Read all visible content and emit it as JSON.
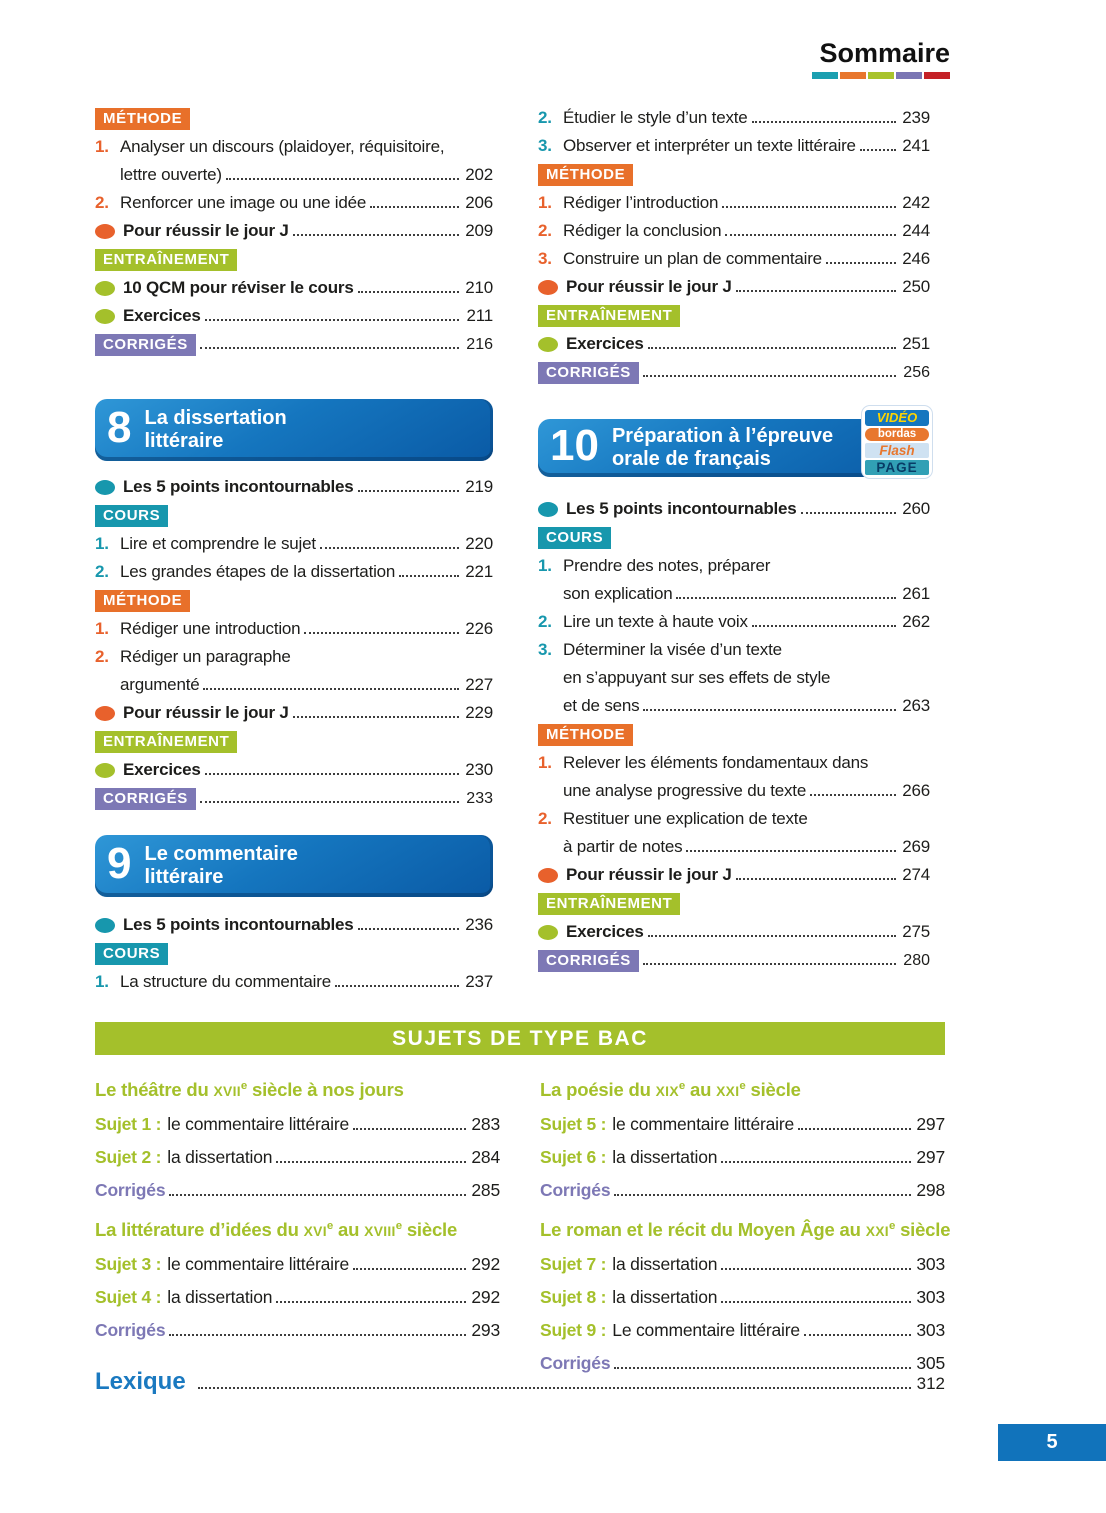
{
  "header": {
    "title": "Sommaire",
    "stripes": [
      "#1b9fb0",
      "#e8772e",
      "#a8c32c",
      "#7b76b4",
      "#c42127"
    ]
  },
  "colors": {
    "methode": "#e8702a",
    "entrainement": "#a4c02b",
    "corriges": "#7d78b5",
    "cours": "#1797ad",
    "num_orange": "#e8612c",
    "orange": "#e8612c",
    "green": "#a4c02b",
    "teal": "#1797ad",
    "banner_blue_top": "#2f97d7",
    "banner_blue_bottom": "#0a5aa5",
    "sujet_green": "#a4c02b",
    "corriges_text": "#7d78b5",
    "lexique_blue": "#1a79c0",
    "pagebox_blue": "#1173bb"
  },
  "toc": {
    "left": [
      {
        "type": "badge",
        "style": "methode",
        "label": "MÉTHODE"
      },
      {
        "type": "item",
        "num": "1.",
        "color": "orange",
        "lines": [
          {
            "text": "Analyser un discours  (plaidoyer, réquisitoire,"
          },
          {
            "text": "lettre ouverte)",
            "page": "202"
          }
        ]
      },
      {
        "type": "item",
        "num": "2.",
        "color": "orange",
        "lines": [
          {
            "text": "Renforcer une image ou une idée",
            "page": "206"
          }
        ]
      },
      {
        "type": "bullet",
        "dot": "orange",
        "text": "Pour réussir le jour J",
        "page": "209"
      },
      {
        "type": "badge",
        "style": "entrainement",
        "label": "ENTRAÎNEMENT"
      },
      {
        "type": "bullet",
        "dot": "green",
        "text": "10 QCM pour réviser le cours",
        "page": "210"
      },
      {
        "type": "bullet",
        "dot": "green",
        "text": "Exercices",
        "page": "211"
      },
      {
        "type": "badge",
        "style": "corriges",
        "label": "CORRIGÉS",
        "page": "216"
      },
      {
        "type": "chapter",
        "num": "8",
        "lines": [
          "La dissertation",
          "littéraire"
        ]
      },
      {
        "type": "bullet",
        "dot": "teal",
        "text": "Les 5 points incontournables",
        "page": "219"
      },
      {
        "type": "badge",
        "style": "cours",
        "label": "COURS"
      },
      {
        "type": "item",
        "num": "1.",
        "color": "teal",
        "lines": [
          {
            "text": "Lire et comprendre le sujet",
            "page": "220"
          }
        ]
      },
      {
        "type": "item",
        "num": "2.",
        "color": "teal",
        "lines": [
          {
            "text": "Les grandes étapes de la dissertation",
            "page": "221"
          }
        ]
      },
      {
        "type": "badge",
        "style": "methode",
        "label": "MÉTHODE"
      },
      {
        "type": "item",
        "num": "1.",
        "color": "orange",
        "lines": [
          {
            "text": "Rédiger une introduction",
            "page": "226"
          }
        ]
      },
      {
        "type": "item",
        "num": "2.",
        "color": "orange",
        "lines": [
          {
            "text": "Rédiger un paragraphe"
          },
          {
            "text": "argumenté",
            "page": "227"
          }
        ]
      },
      {
        "type": "bullet",
        "dot": "orange",
        "text": "Pour réussir le jour J",
        "page": "229"
      },
      {
        "type": "badge",
        "style": "entrainement",
        "label": "ENTRAÎNEMENT"
      },
      {
        "type": "bullet",
        "dot": "green",
        "text": "Exercices",
        "page": "230"
      },
      {
        "type": "badge",
        "style": "corriges",
        "label": "CORRIGÉS",
        "page": "233"
      },
      {
        "type": "chapter",
        "num": "9",
        "lines": [
          "Le commentaire",
          "littéraire"
        ]
      },
      {
        "type": "bullet",
        "dot": "teal",
        "text": "Les 5 points incontournables",
        "page": "236"
      },
      {
        "type": "badge",
        "style": "cours",
        "label": "COURS"
      },
      {
        "type": "item",
        "num": "1.",
        "color": "teal",
        "lines": [
          {
            "text": "La structure du commentaire",
            "page": "237"
          }
        ]
      }
    ],
    "right": [
      {
        "type": "item",
        "num": "2.",
        "color": "teal",
        "lines": [
          {
            "text": "Étudier le style d’un texte",
            "page": "239"
          }
        ]
      },
      {
        "type": "item",
        "num": "3.",
        "color": "teal",
        "lines": [
          {
            "text": "Observer et interpréter un texte littéraire",
            "page": "241"
          }
        ]
      },
      {
        "type": "badge",
        "style": "methode",
        "label": "MÉTHODE"
      },
      {
        "type": "item",
        "num": "1.",
        "color": "orange",
        "lines": [
          {
            "text": "Rédiger l’introduction",
            "page": "242"
          }
        ]
      },
      {
        "type": "item",
        "num": "2.",
        "color": "orange",
        "lines": [
          {
            "text": "Rédiger la conclusion",
            "page": "244"
          }
        ]
      },
      {
        "type": "item",
        "num": "3.",
        "color": "orange",
        "lines": [
          {
            "text": "Construire un plan de commentaire",
            "page": "246"
          }
        ]
      },
      {
        "type": "bullet",
        "dot": "orange",
        "text": "Pour réussir le jour J",
        "page": "250"
      },
      {
        "type": "badge",
        "style": "entrainement",
        "label": "ENTRAÎNEMENT"
      },
      {
        "type": "bullet",
        "dot": "green",
        "text": "Exercices",
        "page": "251"
      },
      {
        "type": "badge",
        "style": "corriges",
        "label": "CORRIGÉS",
        "page": "256"
      },
      {
        "type": "chapter",
        "num": "10",
        "lines": [
          "Préparation à l’épreuve",
          "orale de français"
        ],
        "video": {
          "l1": "VIDÉO",
          "l2": "bordas",
          "l3": "Flash",
          "l4": "PAGE"
        }
      },
      {
        "type": "bullet",
        "dot": "teal",
        "text": "Les 5 points incontournables",
        "page": "260"
      },
      {
        "type": "badge",
        "style": "cours",
        "label": "COURS"
      },
      {
        "type": "item",
        "num": "1.",
        "color": "teal",
        "lines": [
          {
            "text": "Prendre des notes, préparer"
          },
          {
            "text": "son explication",
            "page": "261"
          }
        ]
      },
      {
        "type": "item",
        "num": "2.",
        "color": "teal",
        "lines": [
          {
            "text": "Lire un texte à haute voix",
            "page": "262"
          }
        ]
      },
      {
        "type": "item",
        "num": "3.",
        "color": "teal",
        "lines": [
          {
            "text": "Déterminer la visée d’un texte"
          },
          {
            "text": "en s’appuyant sur ses effets de style"
          },
          {
            "text": "et de sens",
            "page": "263"
          }
        ]
      },
      {
        "type": "badge",
        "style": "methode",
        "label": "MÉTHODE"
      },
      {
        "type": "item",
        "num": "1.",
        "color": "orange",
        "lines": [
          {
            "text": "Relever les éléments fondamentaux dans"
          },
          {
            "text": "une analyse progressive du texte",
            "page": "266"
          }
        ]
      },
      {
        "type": "item",
        "num": "2.",
        "color": "orange",
        "lines": [
          {
            "text": "Restituer une explication de texte"
          },
          {
            "text": "à partir de notes",
            "page": "269"
          }
        ]
      },
      {
        "type": "bullet",
        "dot": "orange",
        "text": "Pour réussir le jour J",
        "page": "274"
      },
      {
        "type": "badge",
        "style": "entrainement",
        "label": "ENTRAÎNEMENT"
      },
      {
        "type": "bullet",
        "dot": "green",
        "text": "Exercices",
        "page": "275"
      },
      {
        "type": "badge",
        "style": "corriges",
        "label": "CORRIGÉS",
        "page": "280"
      }
    ]
  },
  "sujets": {
    "banner": "SUJETS DE TYPE BAC",
    "left": {
      "groups": [
        {
          "heading": [
            {
              "t": "Le théâtre du "
            },
            {
              "t": "xvii",
              "sc": true
            },
            {
              "t": "e",
              "sup": true
            },
            {
              "t": " siècle à nos jours"
            }
          ],
          "entries": [
            {
              "label": "Sujet 1 :",
              "text": "le commentaire littéraire",
              "page": "283"
            },
            {
              "label": "Sujet 2 :",
              "text": "la dissertation",
              "page": "284"
            },
            {
              "label": "Corrigés",
              "text": "",
              "page": "285",
              "kind": "corriges"
            }
          ]
        },
        {
          "heading": [
            {
              "t": "La littérature d’idées du "
            },
            {
              "t": "xvi",
              "sc": true
            },
            {
              "t": "e",
              "sup": true
            },
            {
              "t": " au "
            },
            {
              "t": "xviii",
              "sc": true
            },
            {
              "t": "e",
              "sup": true
            },
            {
              "t": " siècle"
            }
          ],
          "entries": [
            {
              "label": "Sujet 3 :",
              "text": "le commentaire littéraire",
              "page": "292"
            },
            {
              "label": "Sujet 4 :",
              "text": "la dissertation",
              "page": "292"
            },
            {
              "label": "Corrigés",
              "text": "",
              "page": "293",
              "kind": "corriges"
            }
          ]
        }
      ]
    },
    "right": {
      "groups": [
        {
          "heading": [
            {
              "t": "La poésie du "
            },
            {
              "t": "xix",
              "sc": true
            },
            {
              "t": "e",
              "sup": true
            },
            {
              "t": " au "
            },
            {
              "t": "xxi",
              "sc": true
            },
            {
              "t": "e",
              "sup": true
            },
            {
              "t": " siècle"
            }
          ],
          "entries": [
            {
              "label": "Sujet 5 :",
              "text": "le commentaire littéraire",
              "page": "297"
            },
            {
              "label": "Sujet 6 :",
              "text": "la dissertation",
              "page": "297"
            },
            {
              "label": "Corrigés",
              "text": "",
              "page": "298",
              "kind": "corriges"
            }
          ]
        },
        {
          "heading": [
            {
              "t": "Le roman et le récit du Moyen Âge au "
            },
            {
              "t": "xxi",
              "sc": true
            },
            {
              "t": "e",
              "sup": true
            },
            {
              "t": " siècle"
            }
          ],
          "entries": [
            {
              "label": "Sujet 7 :",
              "text": "la dissertation",
              "page": "303"
            },
            {
              "label": "Sujet 8 :",
              "text": "la dissertation",
              "page": "303"
            },
            {
              "label": "Sujet 9 :",
              "text": "Le commentaire littéraire",
              "page": "303"
            },
            {
              "label": "Corrigés",
              "text": "",
              "page": "305",
              "kind": "corriges"
            }
          ]
        }
      ]
    }
  },
  "footer": {
    "lexique": {
      "label": "Lexique",
      "page": "312"
    },
    "page_number": "5"
  }
}
